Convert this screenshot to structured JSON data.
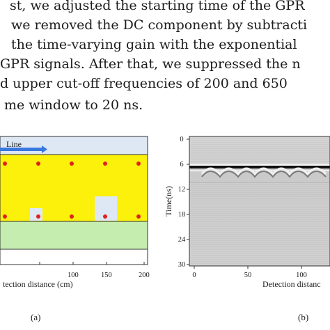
{
  "paragraph": {
    "lines": [
      "st, we adjusted the starting time of the GPR",
      "we removed the DC component by subtracti",
      "the time-varying gain with the exponential",
      "GPR signals. After that, we suppressed the n",
      "d upper cut-off frequencies of 200 and 650",
      "me window to 20 ns."
    ]
  },
  "figure_a": {
    "panel_label": "(a)",
    "survey_line_label": "Line",
    "x_axis_label": "tection distance (cm)",
    "x_ticks": [
      "100",
      "150",
      "200"
    ],
    "colors": {
      "sky": "#dde8f4",
      "soil": "#fbf10a",
      "base": "#c6edb0",
      "target": "#e02020",
      "void": "#dde8f4",
      "arrow": "#3a78e0"
    }
  },
  "figure_b": {
    "panel_label": "(b)",
    "y_axis_label": "Time(ns)",
    "y_ticks": [
      "0",
      "6",
      "12",
      "18",
      "24",
      "30"
    ],
    "x_axis_label": "Detection distanc",
    "x_ticks": [
      "0",
      "50",
      "100"
    ]
  }
}
